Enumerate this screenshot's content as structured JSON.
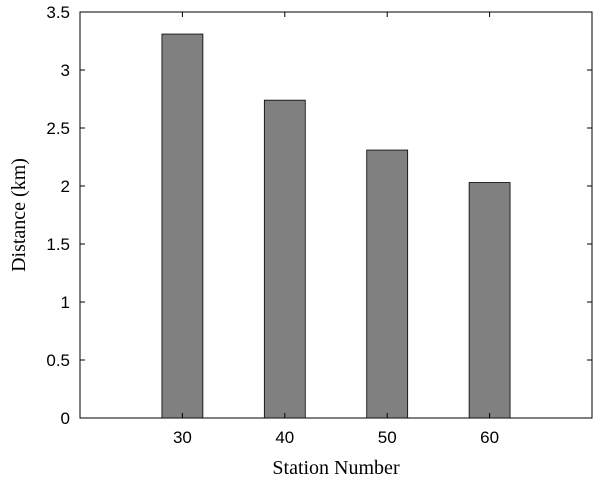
{
  "chart_data": {
    "type": "bar",
    "categories": [
      "30",
      "40",
      "50",
      "60"
    ],
    "values": [
      3.31,
      2.74,
      2.31,
      2.03
    ],
    "xlabel": "Station Number",
    "ylabel": "Distance (km)",
    "xlim": [
      20,
      70
    ],
    "ylim": [
      0,
      3.5
    ],
    "yticks": [
      0,
      0.5,
      1,
      1.5,
      2,
      2.5,
      3,
      3.5
    ],
    "ytick_labels": [
      "0",
      "0.5",
      "1",
      "1.5",
      "2",
      "2.5",
      "3",
      "3.5"
    ],
    "bar_color": "#808080",
    "grid": false,
    "legend": "none"
  }
}
